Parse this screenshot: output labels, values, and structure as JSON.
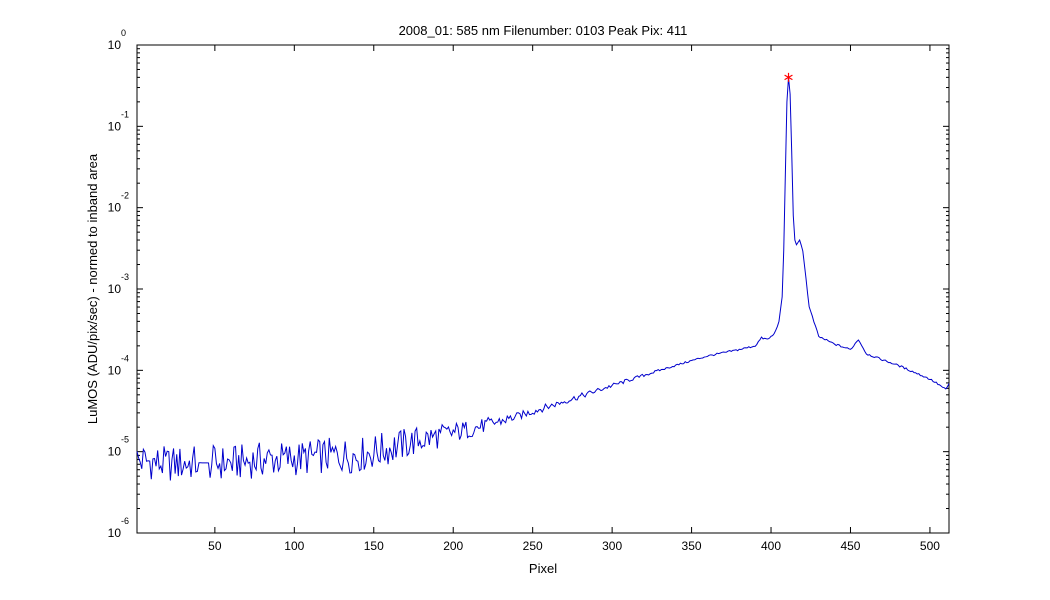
{
  "chart_data": {
    "type": "line",
    "title": "2008_01: 585 nm  Filenumber: 0103 Peak Pix: 411",
    "xlabel": "Pixel",
    "ylabel": "LuMOS (ADU/pix/sec) - normed to inband area",
    "xlim": [
      1,
      512
    ],
    "ylim": [
      1e-06,
      1
    ],
    "yscale": "log",
    "grid": false,
    "xticks": [
      50,
      100,
      150,
      200,
      250,
      300,
      350,
      400,
      450,
      500
    ],
    "xtick_labels": [
      "50",
      "100",
      "150",
      "200",
      "250",
      "300",
      "350",
      "400",
      "450",
      "500"
    ],
    "yticks": [
      1,
      0.1,
      0.01,
      0.001,
      0.0001,
      1e-05,
      1e-06
    ],
    "ytick_base": "10",
    "ytick_exponents": [
      "0",
      "-1",
      "-2",
      "-3",
      "-4",
      "-5",
      "-6"
    ],
    "line_color": "#0000cc",
    "marker_color": "#ff0000",
    "peak": {
      "x": 411,
      "y": 0.4
    },
    "series": [
      {
        "x": [
          1,
          20,
          40,
          60,
          80,
          100,
          120,
          140,
          160,
          180,
          200,
          220,
          240,
          260,
          280,
          300,
          320,
          340,
          360,
          380,
          390,
          394,
          398,
          402,
          405,
          407,
          408,
          409,
          410,
          411,
          412,
          413,
          414,
          415,
          416,
          418,
          420,
          424,
          430,
          440,
          450,
          455,
          460,
          470,
          480,
          490,
          500,
          505,
          510,
          512
        ],
        "y": [
          7.9e-06,
          7e-06,
          7.3e-06,
          7.2e-06,
          8e-06,
          8.2e-06,
          8.9e-06,
          9e-06,
          1.1e-05,
          1.4e-05,
          1.7e-05,
          2.1e-05,
          2.7e-05,
          3.6e-05,
          4.8e-05,
          6.5e-05,
          8.7e-05,
          0.000115,
          0.00015,
          0.00018,
          0.0002,
          0.00025,
          0.00024,
          0.00028,
          0.0004,
          0.0008,
          0.003,
          0.025,
          0.2,
          0.4,
          0.25,
          0.05,
          0.008,
          0.004,
          0.0035,
          0.004,
          0.003,
          0.0006,
          0.00026,
          0.00021,
          0.00018,
          0.00024,
          0.00016,
          0.000135,
          0.000115,
          9.5e-05,
          7.8e-05,
          6.8e-05,
          5.8e-05,
          6.8e-05
        ]
      }
    ]
  }
}
